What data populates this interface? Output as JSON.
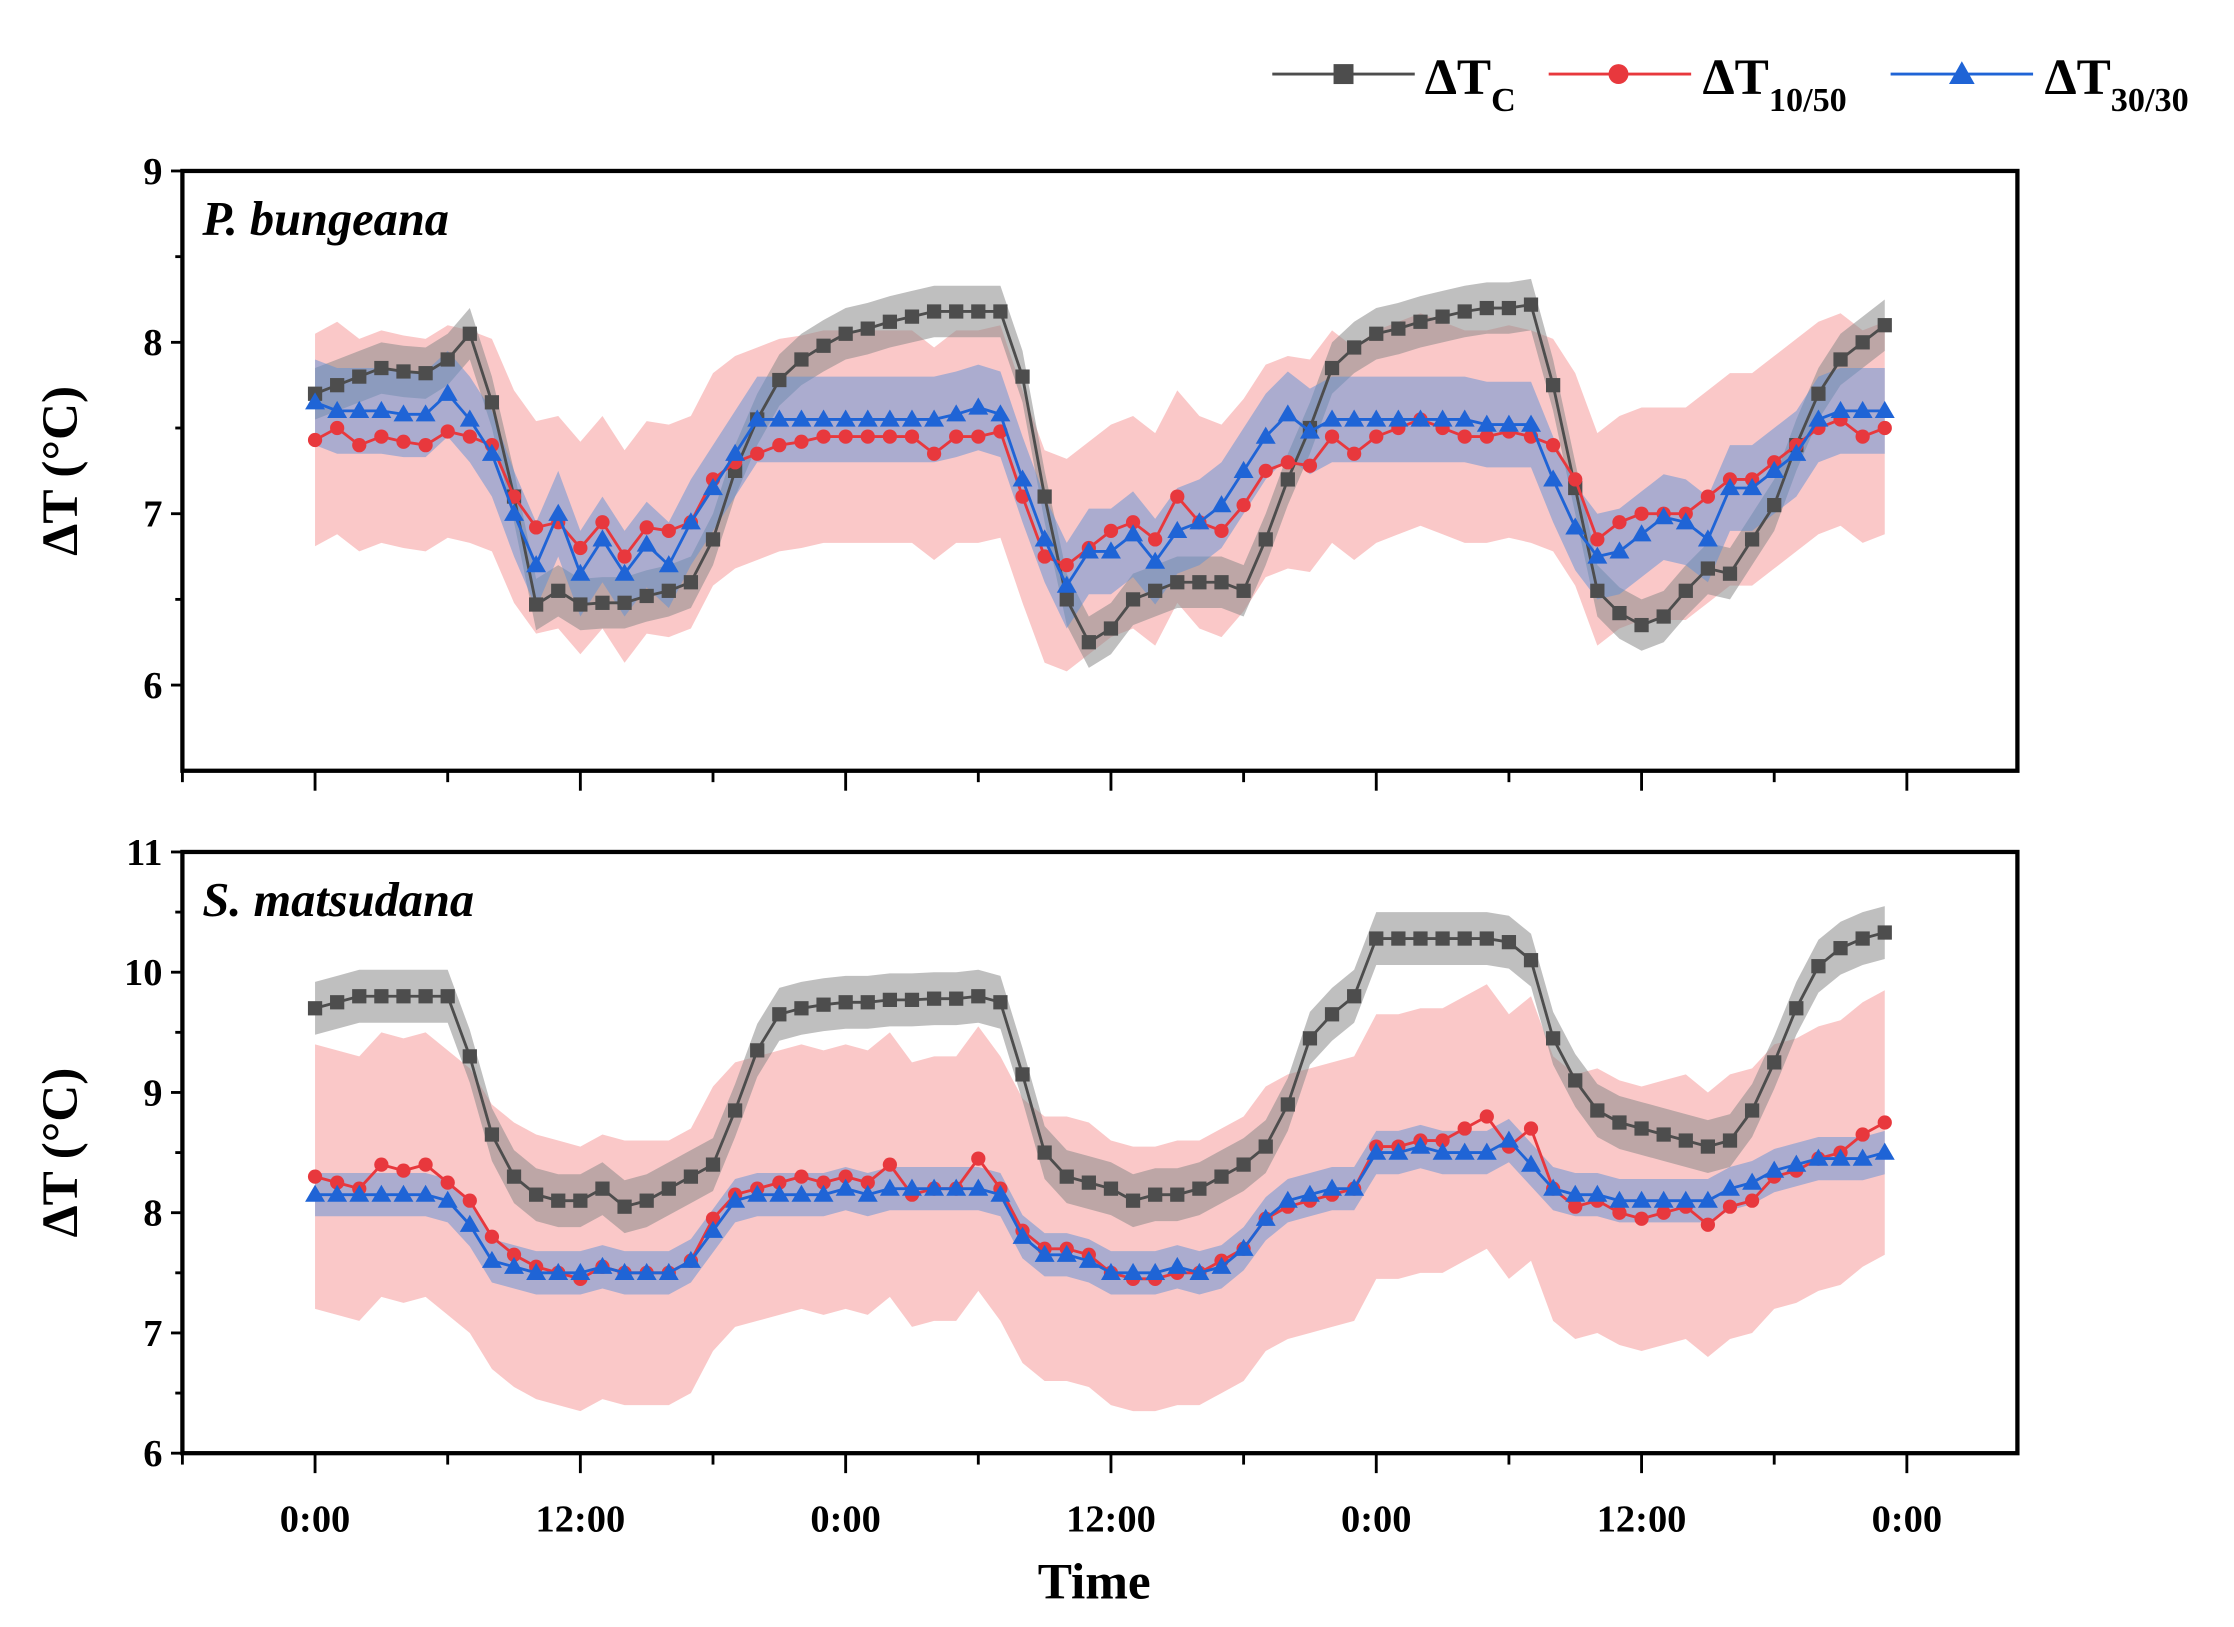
{
  "legend": [
    {
      "main": "ΔT",
      "sub": "C",
      "color": "#4d4d4d",
      "marker": "square"
    },
    {
      "main": "ΔT",
      "sub": "10/50",
      "color": "#e8383d",
      "marker": "circle"
    },
    {
      "main": "ΔT",
      "sub": "30/30",
      "color": "#1f64d6",
      "marker": "triangle"
    }
  ],
  "xlabel": "Time",
  "x_tick_labels": [
    "0:00",
    "12:00",
    "0:00",
    "12:00",
    "0:00",
    "12:00",
    "0:00"
  ],
  "chart_data": [
    {
      "type": "line",
      "title": "P. bungeana",
      "ylabel": "ΔT (°C)",
      "xlabel": "Time",
      "x_unit": "hours from start",
      "xlim": [
        -6,
        77
      ],
      "ylim": [
        5.5,
        9
      ],
      "y_tick_labels": [
        "6",
        "7",
        "8",
        "9"
      ],
      "series": [
        {
          "name": "ΔTC",
          "band": 0.15,
          "bandColor": "#8a8a8a",
          "bandOpacity": 0.55,
          "values": [
            7.7,
            7.75,
            7.8,
            7.85,
            7.83,
            7.82,
            7.9,
            8.05,
            7.65,
            7.1,
            6.47,
            6.55,
            6.47,
            6.48,
            6.48,
            6.52,
            6.55,
            6.6,
            6.85,
            7.25,
            7.55,
            7.78,
            7.9,
            7.98,
            8.05,
            8.08,
            8.12,
            8.15,
            8.18,
            8.18,
            8.18,
            8.18,
            7.8,
            7.1,
            6.5,
            6.25,
            6.33,
            6.5,
            6.55,
            6.6,
            6.6,
            6.6,
            6.55,
            6.85,
            7.2,
            7.5,
            7.85,
            7.97,
            8.05,
            8.08,
            8.12,
            8.15,
            8.18,
            8.2,
            8.2,
            8.22,
            7.75,
            7.15,
            6.55,
            6.42,
            6.35,
            6.4,
            6.55,
            6.68,
            6.65,
            6.85,
            7.05,
            7.4,
            7.7,
            7.9,
            8.0,
            8.1
          ]
        },
        {
          "name": "ΔT10/50",
          "band": 0.62,
          "bandColor": "#f6a3a3",
          "bandOpacity": 0.6,
          "values": [
            7.43,
            7.5,
            7.4,
            7.45,
            7.42,
            7.4,
            7.48,
            7.45,
            7.4,
            7.1,
            6.92,
            6.95,
            6.8,
            6.95,
            6.75,
            6.92,
            6.9,
            6.95,
            7.2,
            7.3,
            7.35,
            7.4,
            7.42,
            7.45,
            7.45,
            7.45,
            7.45,
            7.45,
            7.35,
            7.45,
            7.45,
            7.48,
            7.1,
            6.75,
            6.7,
            6.8,
            6.9,
            6.95,
            6.85,
            7.1,
            6.95,
            6.9,
            7.05,
            7.25,
            7.3,
            7.28,
            7.45,
            7.35,
            7.45,
            7.5,
            7.55,
            7.5,
            7.45,
            7.45,
            7.48,
            7.45,
            7.4,
            7.2,
            6.85,
            6.95,
            7.0,
            7.0,
            7.0,
            7.1,
            7.2,
            7.2,
            7.3,
            7.4,
            7.5,
            7.55,
            7.45,
            7.5
          ]
        },
        {
          "name": "ΔT30/30",
          "band": 0.25,
          "bandColor": "#5b8fd6",
          "bandOpacity": 0.5,
          "values": [
            7.65,
            7.6,
            7.6,
            7.6,
            7.58,
            7.58,
            7.7,
            7.55,
            7.35,
            7.0,
            6.7,
            7.0,
            6.65,
            6.85,
            6.65,
            6.82,
            6.7,
            6.95,
            7.15,
            7.35,
            7.55,
            7.55,
            7.55,
            7.55,
            7.55,
            7.55,
            7.55,
            7.55,
            7.55,
            7.58,
            7.62,
            7.58,
            7.2,
            6.85,
            6.58,
            6.78,
            6.78,
            6.88,
            6.72,
            6.9,
            6.95,
            7.05,
            7.25,
            7.45,
            7.58,
            7.48,
            7.55,
            7.55,
            7.55,
            7.55,
            7.55,
            7.55,
            7.55,
            7.52,
            7.52,
            7.52,
            7.2,
            6.92,
            6.75,
            6.78,
            6.88,
            6.98,
            6.95,
            6.85,
            7.15,
            7.15,
            7.25,
            7.35,
            7.55,
            7.6,
            7.6,
            7.6
          ]
        }
      ]
    },
    {
      "type": "line",
      "title": "S. matsudana",
      "ylabel": "ΔT (°C)",
      "xlabel": "Time",
      "x_unit": "hours from start",
      "xlim": [
        -6,
        77
      ],
      "ylim": [
        6,
        11
      ],
      "y_tick_labels": [
        "6",
        "7",
        "8",
        "9",
        "10",
        "11"
      ],
      "series": [
        {
          "name": "ΔTC",
          "band": 0.22,
          "bandColor": "#8a8a8a",
          "bandOpacity": 0.55,
          "values": [
            9.7,
            9.75,
            9.8,
            9.8,
            9.8,
            9.8,
            9.8,
            9.3,
            8.65,
            8.3,
            8.15,
            8.1,
            8.1,
            8.2,
            8.05,
            8.1,
            8.2,
            8.3,
            8.4,
            8.85,
            9.35,
            9.65,
            9.7,
            9.73,
            9.75,
            9.75,
            9.77,
            9.77,
            9.78,
            9.78,
            9.8,
            9.75,
            9.15,
            8.5,
            8.3,
            8.25,
            8.2,
            8.1,
            8.15,
            8.15,
            8.2,
            8.3,
            8.4,
            8.55,
            8.9,
            9.45,
            9.65,
            9.8,
            10.28,
            10.28,
            10.28,
            10.28,
            10.28,
            10.28,
            10.25,
            10.1,
            9.45,
            9.1,
            8.85,
            8.75,
            8.7,
            8.65,
            8.6,
            8.55,
            8.6,
            8.85,
            9.25,
            9.7,
            10.05,
            10.2,
            10.28,
            10.33
          ]
        },
        {
          "name": "ΔT10/50",
          "band": 1.1,
          "bandColor": "#f6a3a3",
          "bandOpacity": 0.6,
          "values": [
            8.3,
            8.25,
            8.2,
            8.4,
            8.35,
            8.4,
            8.25,
            8.1,
            7.8,
            7.65,
            7.55,
            7.5,
            7.45,
            7.55,
            7.5,
            7.5,
            7.5,
            7.6,
            7.95,
            8.15,
            8.2,
            8.25,
            8.3,
            8.25,
            8.3,
            8.25,
            8.4,
            8.15,
            8.2,
            8.2,
            8.45,
            8.2,
            7.85,
            7.7,
            7.7,
            7.65,
            7.5,
            7.45,
            7.45,
            7.5,
            7.5,
            7.6,
            7.7,
            7.95,
            8.05,
            8.1,
            8.15,
            8.2,
            8.55,
            8.55,
            8.6,
            8.6,
            8.7,
            8.8,
            8.55,
            8.7,
            8.2,
            8.05,
            8.1,
            8.0,
            7.95,
            8.0,
            8.05,
            7.9,
            8.05,
            8.1,
            8.3,
            8.35,
            8.45,
            8.5,
            8.65,
            8.75
          ]
        },
        {
          "name": "ΔT30/30",
          "band": 0.18,
          "bandColor": "#5b8fd6",
          "bandOpacity": 0.5,
          "values": [
            8.15,
            8.15,
            8.15,
            8.15,
            8.15,
            8.15,
            8.1,
            7.9,
            7.6,
            7.55,
            7.5,
            7.5,
            7.5,
            7.55,
            7.5,
            7.5,
            7.5,
            7.6,
            7.85,
            8.1,
            8.15,
            8.15,
            8.15,
            8.15,
            8.2,
            8.15,
            8.2,
            8.2,
            8.2,
            8.2,
            8.2,
            8.15,
            7.8,
            7.65,
            7.65,
            7.6,
            7.5,
            7.5,
            7.5,
            7.55,
            7.5,
            7.55,
            7.7,
            7.95,
            8.1,
            8.15,
            8.2,
            8.2,
            8.5,
            8.5,
            8.55,
            8.5,
            8.5,
            8.5,
            8.6,
            8.4,
            8.2,
            8.15,
            8.15,
            8.1,
            8.1,
            8.1,
            8.1,
            8.1,
            8.2,
            8.25,
            8.35,
            8.4,
            8.45,
            8.45,
            8.45,
            8.5
          ]
        }
      ]
    }
  ]
}
